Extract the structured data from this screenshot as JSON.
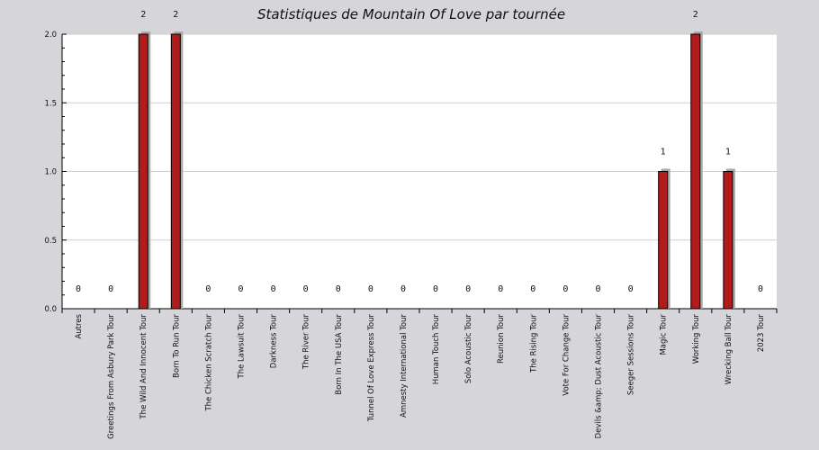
{
  "colors": {
    "background": "#d6d5da",
    "plot_background": "#ffffff",
    "bar": "#b01c1c",
    "bar_shadow": "#a9a9a9",
    "grid": "#cfcfcf"
  },
  "chart_data": {
    "type": "bar",
    "title": "Statistiques de Mountain Of Love par tournée",
    "xlabel": "",
    "ylabel": "",
    "ylim": [
      0,
      2
    ],
    "yticks": [
      "0.0",
      "0.5",
      "1.0",
      "1.5",
      "2.0"
    ],
    "grid": true,
    "categories": [
      "Autres",
      "Greetings From Asbury Park Tour",
      "The Wild And Innocent Tour",
      "Born To Run Tour",
      "The Chicken Scratch Tour",
      "The Lawsuit Tour",
      "Darkness Tour",
      "The River Tour",
      "Born In The USA Tour",
      "Tunnel Of Love Express Tour",
      "Amnesty International Tour",
      "Human Touch Tour",
      "Solo Acoustic Tour",
      "Reunion Tour",
      "The Rising Tour",
      "Vote For Change Tour",
      "Devils &amp; Dust Acoustic Tour",
      "Seeger Sessions Tour",
      "Magic Tour",
      "Working Tour",
      "Wrecking Ball Tour",
      "2023 Tour"
    ],
    "values": [
      0,
      0,
      2,
      2,
      0,
      0,
      0,
      0,
      0,
      0,
      0,
      0,
      0,
      0,
      0,
      0,
      0,
      0,
      1,
      2,
      1,
      0
    ],
    "value_labels": [
      "0",
      "0",
      "2",
      "2",
      "0",
      "0",
      "0",
      "0",
      "0",
      "0",
      "0",
      "0",
      "0",
      "0",
      "0",
      "0",
      "0",
      "0",
      "1",
      "2",
      "1",
      "0"
    ]
  }
}
